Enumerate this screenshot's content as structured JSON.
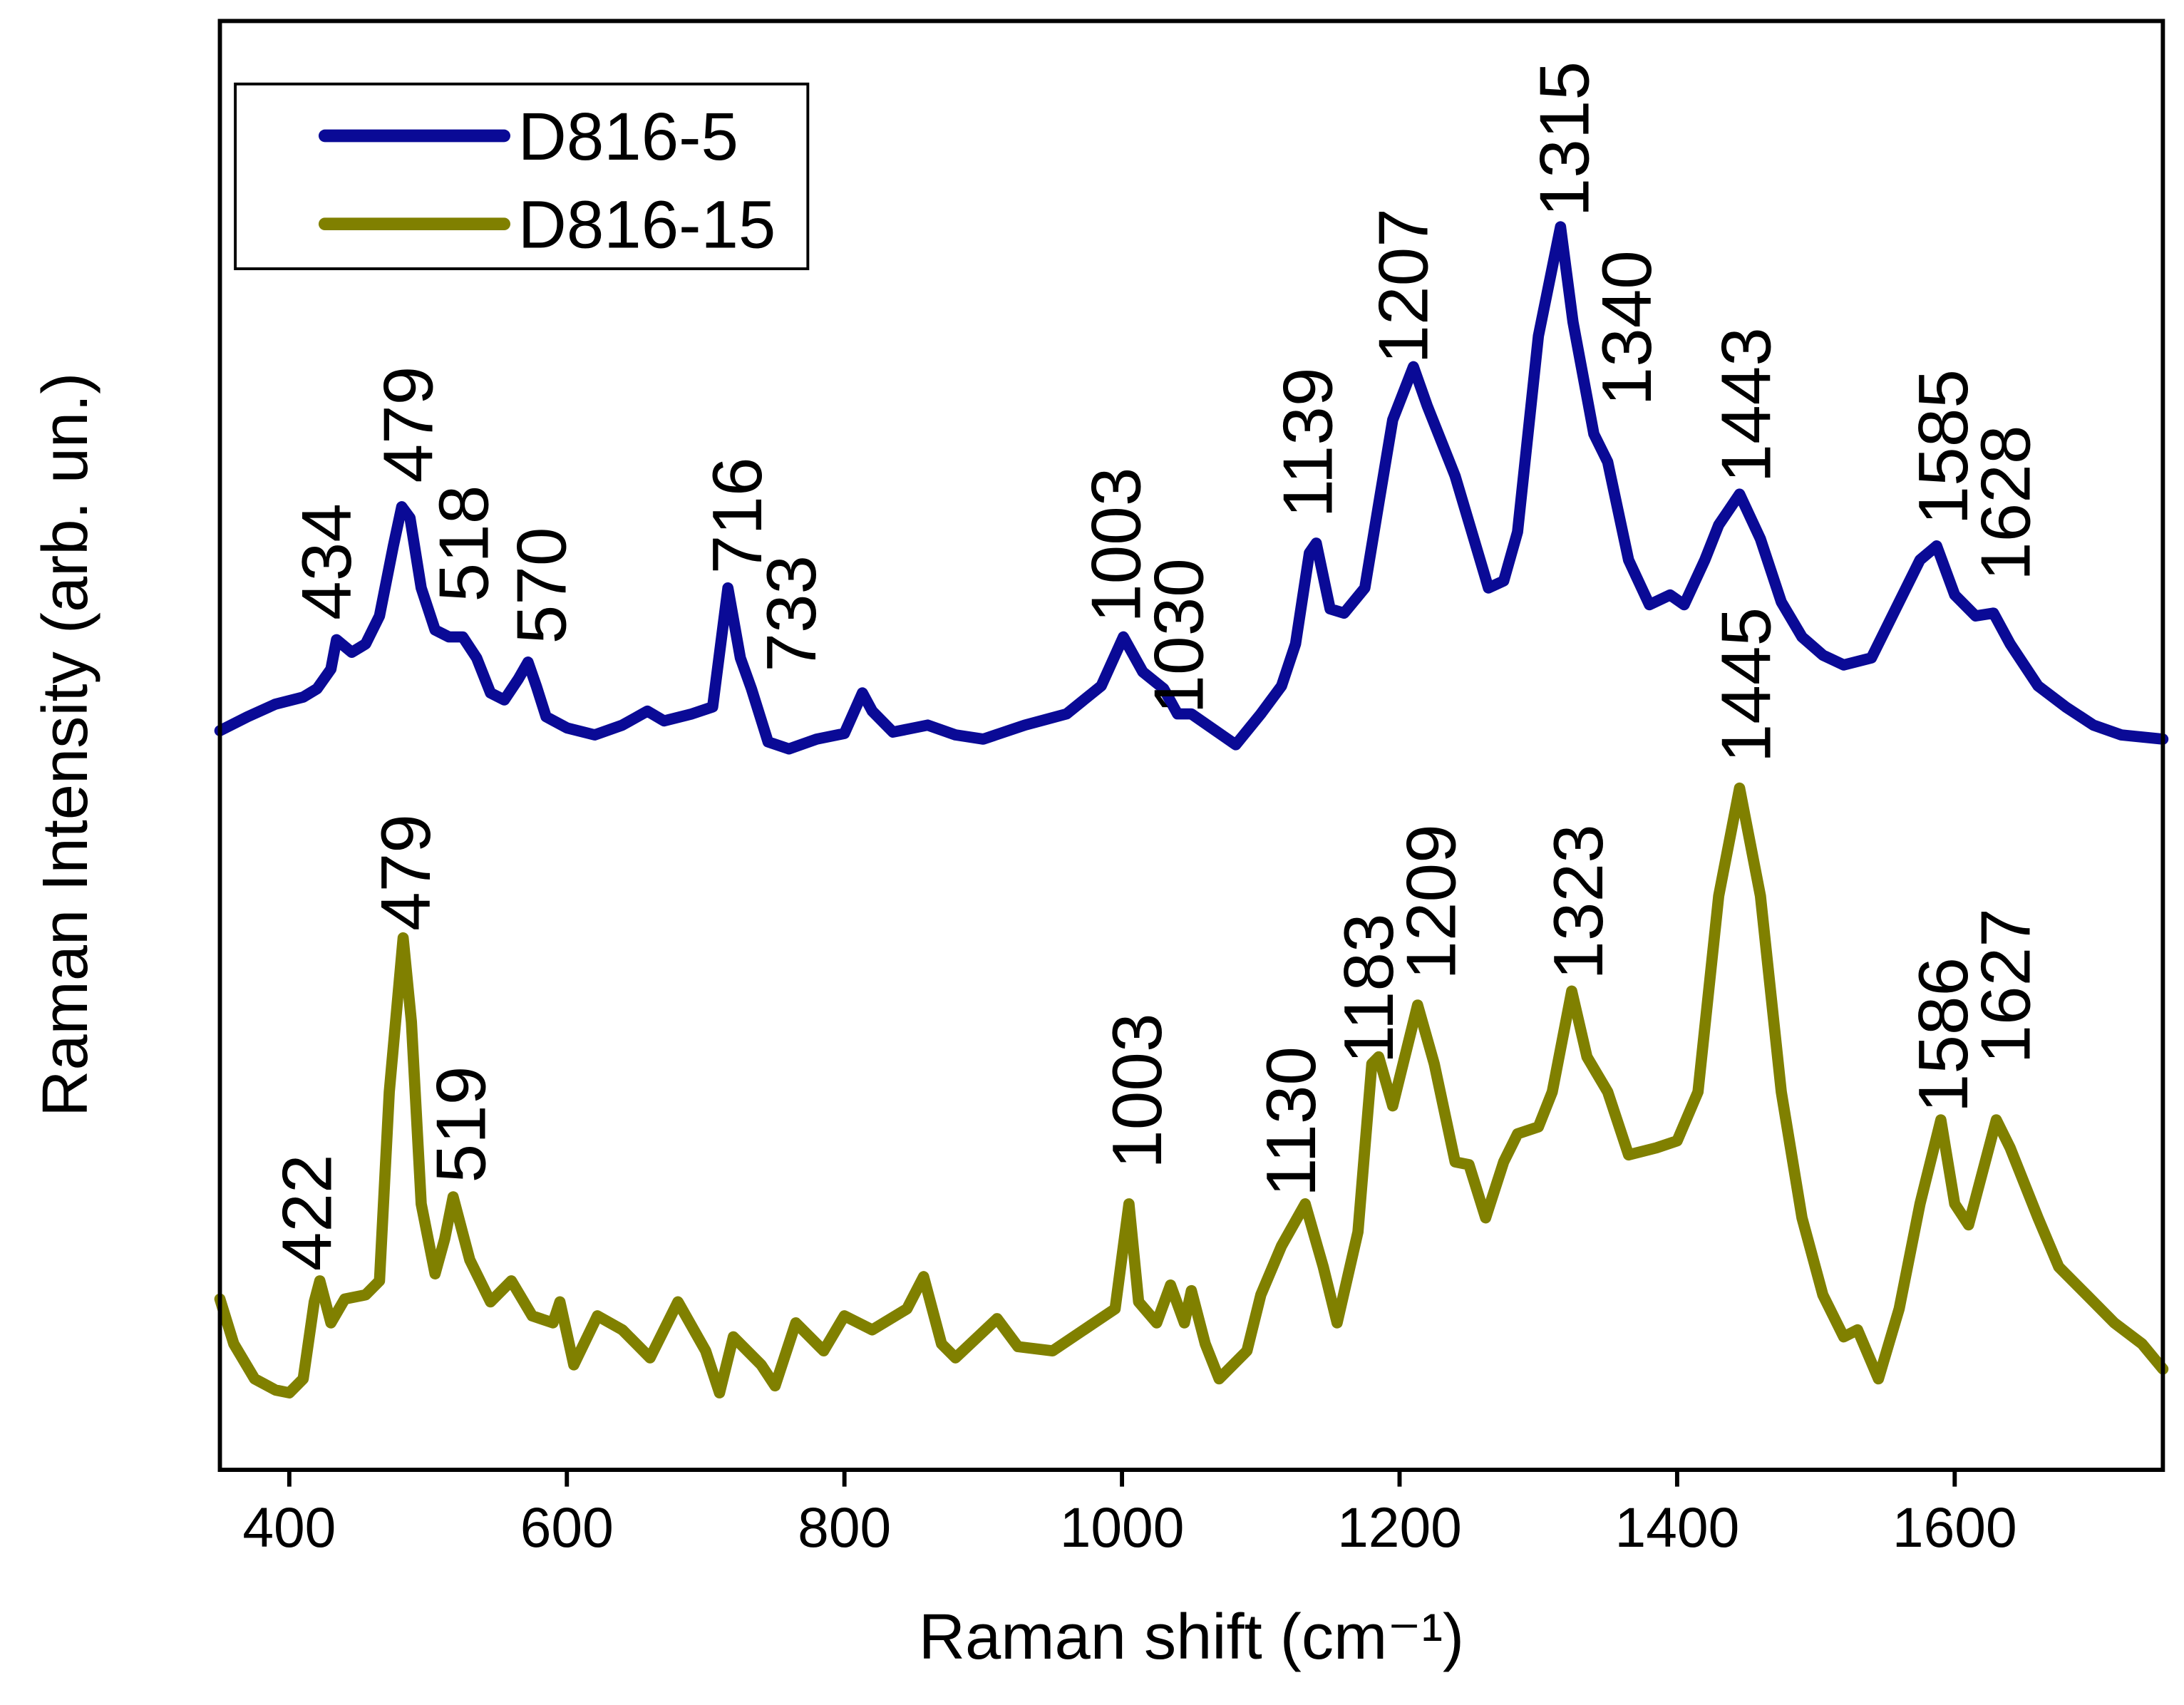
{
  "chart_data": {
    "type": "line",
    "xlabel": "Raman shift (cm⁻¹)",
    "ylabel": "Raman Intensity (arb. un.)",
    "xlim": [
      350,
      1750
    ],
    "xticks": [
      400,
      600,
      800,
      1000,
      1200,
      1400,
      1600
    ],
    "ylim": [
      0,
      1035
    ],
    "legend": "upper left",
    "series": [
      {
        "name": "D816-5",
        "color": "#0a0a96",
        "x": [
          350,
          370,
          390,
          410,
          420,
          430,
          434,
          445,
          455,
          465,
          475,
          481,
          487,
          495,
          505,
          515,
          525,
          535,
          545,
          555,
          565,
          572,
          578,
          585,
          600,
          620,
          640,
          658,
          670,
          690,
          705,
          716,
          725,
          733,
          745,
          760,
          780,
          800,
          813,
          820,
          835,
          860,
          880,
          900,
          930,
          960,
          985,
          1001,
          1015,
          1030,
          1040,
          1050,
          1082,
          1100,
          1115,
          1125,
          1135,
          1140,
          1150,
          1160,
          1175,
          1185,
          1195,
          1210,
          1220,
          1240,
          1264,
          1275,
          1285,
          1300,
          1316,
          1325,
          1340,
          1350,
          1365,
          1380,
          1395,
          1405,
          1420,
          1430,
          1445,
          1460,
          1475,
          1490,
          1505,
          1520,
          1540,
          1560,
          1575,
          1587,
          1600,
          1615,
          1628,
          1640,
          1660,
          1680,
          1700,
          1720,
          1750
        ],
        "values": [
          528,
          538,
          547,
          552,
          558,
          572,
          593,
          584,
          590,
          610,
          660,
          688,
          680,
          630,
          600,
          595,
          595,
          580,
          555,
          550,
          565,
          577,
          560,
          538,
          530,
          525,
          532,
          542,
          535,
          540,
          545,
          630,
          580,
          558,
          520,
          515,
          522,
          526,
          555,
          542,
          527,
          532,
          525,
          522,
          532,
          540,
          560,
          595,
          570,
          558,
          540,
          540,
          518,
          540,
          560,
          590,
          655,
          662,
          615,
          612,
          630,
          690,
          750,
          788,
          760,
          710,
          630,
          635,
          670,
          810,
          888,
          820,
          740,
          720,
          650,
          618,
          625,
          618,
          650,
          675,
          697,
          665,
          620,
          595,
          582,
          575,
          580,
          620,
          650,
          660,
          625,
          610,
          612,
          590,
          560,
          545,
          532,
          525,
          522
        ]
      },
      {
        "name": "D816-15",
        "color": "#808000",
        "x": [
          350,
          360,
          375,
          390,
          400,
          410,
          418,
          422,
          430,
          440,
          455,
          465,
          472,
          482,
          488,
          495,
          505,
          512,
          518,
          530,
          545,
          560,
          575,
          590,
          595,
          605,
          622,
          640,
          660,
          680,
          700,
          710,
          720,
          740,
          750,
          765,
          785,
          800,
          820,
          845,
          857,
          870,
          880,
          910,
          925,
          950,
          980,
          995,
          1005,
          1012,
          1025,
          1035,
          1045,
          1050,
          1060,
          1070,
          1090,
          1100,
          1115,
          1132,
          1145,
          1155,
          1170,
          1180,
          1185,
          1195,
          1213,
          1225,
          1240,
          1250,
          1262,
          1275,
          1285,
          1300,
          1310,
          1324,
          1335,
          1350,
          1365,
          1385,
          1400,
          1415,
          1430,
          1445,
          1460,
          1475,
          1490,
          1505,
          1520,
          1530,
          1545,
          1560,
          1575,
          1590,
          1600,
          1610,
          1630,
          1640,
          1660,
          1675,
          1695,
          1715,
          1735,
          1750
        ],
        "values": [
          122,
          90,
          65,
          57,
          55,
          65,
          120,
          135,
          105,
          122,
          125,
          135,
          270,
          380,
          320,
          190,
          140,
          165,
          195,
          150,
          120,
          135,
          110,
          105,
          120,
          75,
          110,
          100,
          80,
          120,
          85,
          55,
          95,
          75,
          60,
          105,
          85,
          110,
          100,
          115,
          138,
          90,
          80,
          108,
          88,
          85,
          105,
          115,
          190,
          120,
          105,
          132,
          105,
          128,
          90,
          65,
          85,
          125,
          160,
          190,
          145,
          105,
          170,
          290,
          295,
          260,
          332,
          290,
          220,
          218,
          180,
          220,
          240,
          245,
          270,
          342,
          295,
          270,
          225,
          230,
          235,
          270,
          410,
          487,
          410,
          270,
          180,
          125,
          95,
          100,
          65,
          115,
          190,
          250,
          190,
          175,
          250,
          230,
          180,
          145,
          125,
          105,
          90,
          72
        ]
      }
    ],
    "annotations": [
      {
        "text": "434",
        "x": 427,
        "y": 607
      },
      {
        "text": "479",
        "x": 486,
        "y": 705
      },
      {
        "text": "518",
        "x": 526,
        "y": 620
      },
      {
        "text": "570",
        "x": 582,
        "y": 590
      },
      {
        "text": "716",
        "x": 723,
        "y": 640
      },
      {
        "text": "733",
        "x": 762,
        "y": 570
      },
      {
        "text": "1003",
        "x": 996,
        "y": 605
      },
      {
        "text": "1030",
        "x": 1041,
        "y": 540
      },
      {
        "text": "1139",
        "x": 1134,
        "y": 680
      },
      {
        "text": "1207",
        "x": 1203,
        "y": 790
      },
      {
        "text": "1315",
        "x": 1319,
        "y": 895
      },
      {
        "text": "1340",
        "x": 1364,
        "y": 760
      },
      {
        "text": "1443",
        "x": 1450,
        "y": 705
      },
      {
        "text": "1585",
        "x": 1592,
        "y": 675
      },
      {
        "text": "1628",
        "x": 1637,
        "y": 635
      },
      {
        "text": "422",
        "x": 413,
        "y": 142
      },
      {
        "text": "479",
        "x": 484,
        "y": 385
      },
      {
        "text": "519",
        "x": 524,
        "y": 205
      },
      {
        "text": "1003",
        "x": 1011,
        "y": 215
      },
      {
        "text": "1130",
        "x": 1122,
        "y": 195
      },
      {
        "text": "1183",
        "x": 1178,
        "y": 290
      },
      {
        "text": "1209",
        "x": 1223,
        "y": 350
      },
      {
        "text": "1323",
        "x": 1329,
        "y": 350
      },
      {
        "text": "1445",
        "x": 1450,
        "y": 505
      },
      {
        "text": "1586",
        "x": 1592,
        "y": 255
      },
      {
        "text": "1627",
        "x": 1637,
        "y": 290
      }
    ]
  }
}
